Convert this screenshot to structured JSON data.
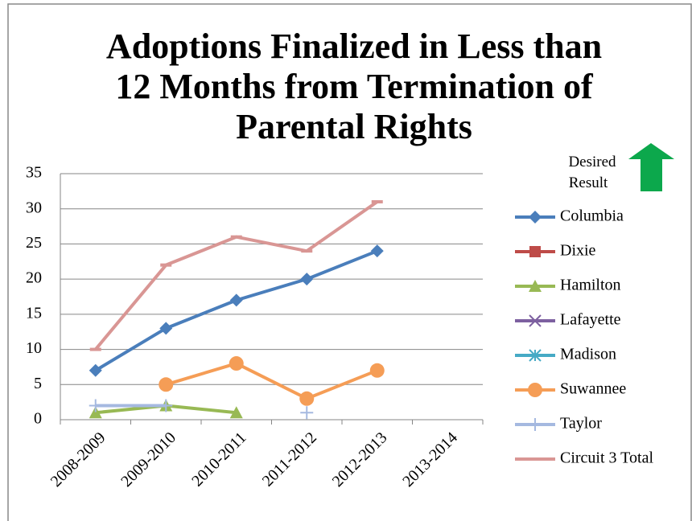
{
  "chart_data": {
    "type": "line",
    "title": [
      "Adoptions Finalized in Less than",
      "12 Months from Termination of",
      "Parental Rights"
    ],
    "annotation": [
      "Desired",
      "Result"
    ],
    "categories": [
      "2008-2009",
      "2009-2010",
      "2010-2011",
      "2011-2012",
      "2012-2013",
      "2013-2014"
    ],
    "series": [
      {
        "name": "Columbia",
        "color": "#4a7ebb",
        "marker": "diamond",
        "values": [
          7,
          13,
          17,
          20,
          24,
          null
        ]
      },
      {
        "name": "Dixie",
        "color": "#be4b48",
        "marker": "square",
        "values": [
          null,
          null,
          null,
          null,
          null,
          null
        ]
      },
      {
        "name": "Hamilton",
        "color": "#98b954",
        "marker": "triangle",
        "values": [
          1,
          2,
          1,
          null,
          null,
          null
        ]
      },
      {
        "name": "Lafayette",
        "color": "#7d60a0",
        "marker": "x",
        "values": [
          null,
          null,
          null,
          null,
          null,
          null
        ]
      },
      {
        "name": "Madison",
        "color": "#46aac5",
        "marker": "star",
        "values": [
          null,
          null,
          null,
          null,
          null,
          null
        ]
      },
      {
        "name": "Suwannee",
        "color": "#f59d56",
        "marker": "circle",
        "values": [
          null,
          5,
          8,
          3,
          7,
          null
        ]
      },
      {
        "name": "Taylor",
        "color": "#a5b9e0",
        "marker": "plus",
        "values": [
          2,
          2,
          null,
          1,
          null,
          null
        ]
      },
      {
        "name": "Circuit 3 Total",
        "color": "#d99694",
        "marker": "dash",
        "values": [
          10,
          22,
          26,
          24,
          31,
          null
        ]
      }
    ],
    "ylim": [
      0,
      35
    ],
    "yticks": [
      0,
      5,
      10,
      15,
      20,
      25,
      30,
      35
    ],
    "grid": true,
    "legend": "right"
  }
}
